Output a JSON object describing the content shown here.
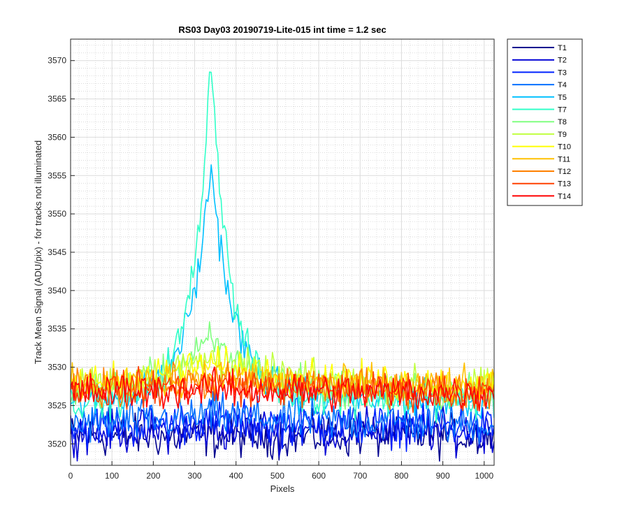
{
  "chart_data": {
    "type": "line",
    "title": "RS03 Day03 20190719-Lite-015 int time = 1.2 sec",
    "xlabel": "Pixels",
    "ylabel": "Track Mean Signal (ADU/pix) - for tracks not illuminated",
    "xlim": [
      0,
      1024
    ],
    "ylim": [
      3517.2,
      3572.8
    ],
    "xticks": [
      0,
      100,
      200,
      300,
      400,
      500,
      600,
      700,
      800,
      900,
      1000
    ],
    "yticks": [
      3520,
      3525,
      3530,
      3535,
      3540,
      3545,
      3550,
      3555,
      3560,
      3565,
      3570
    ],
    "grid": true,
    "minor_grid": true,
    "legend_position": "outside-right-top",
    "x_step": 4,
    "series": [
      {
        "name": "T1",
        "color": "#00008f",
        "base": 3521.0,
        "slope": 0.0,
        "peak": 0,
        "width": 0,
        "noise": 3.0
      },
      {
        "name": "T2",
        "color": "#0000d6",
        "base": 3521.6,
        "slope": 0.2,
        "peak": 0,
        "width": 0,
        "noise": 3.0
      },
      {
        "name": "T3",
        "color": "#0022ff",
        "base": 3522.2,
        "slope": 0.3,
        "peak": 0.6,
        "width": 110,
        "noise": 3.0
      },
      {
        "name": "T4",
        "color": "#0070ff",
        "base": 3522.6,
        "slope": 0.4,
        "peak": 1.0,
        "width": 110,
        "noise": 3.0
      },
      {
        "name": "T5",
        "color": "#00c0ff",
        "base": 3525.5,
        "slope": 0.6,
        "peak": 30.5,
        "width": 52,
        "noise": 2.6
      },
      {
        "name": "T7",
        "color": "#30ffc8",
        "base": 3525.5,
        "slope": 0.6,
        "peak": 45.0,
        "width": 44,
        "noise": 2.6
      },
      {
        "name": "T8",
        "color": "#80ff80",
        "base": 3526.5,
        "slope": 0.8,
        "peak": 6.5,
        "width": 100,
        "noise": 2.6
      },
      {
        "name": "T9",
        "color": "#c0ff40",
        "base": 3527.3,
        "slope": 0.6,
        "peak": 3.5,
        "width": 140,
        "noise": 2.6
      },
      {
        "name": "T10",
        "color": "#ffff00",
        "base": 3527.6,
        "slope": 0.4,
        "peak": 2.5,
        "width": 160,
        "noise": 2.6
      },
      {
        "name": "T11",
        "color": "#ffc000",
        "base": 3527.4,
        "slope": 0.3,
        "peak": 1.5,
        "width": 180,
        "noise": 2.6
      },
      {
        "name": "T12",
        "color": "#ff8000",
        "base": 3527.0,
        "slope": 0.2,
        "peak": 1.0,
        "width": 200,
        "noise": 2.6
      },
      {
        "name": "T13",
        "color": "#ff4000",
        "base": 3526.8,
        "slope": 0.1,
        "peak": 0.8,
        "width": 220,
        "noise": 2.6
      },
      {
        "name": "T14",
        "color": "#ff0000",
        "base": 3526.6,
        "slope": 0.0,
        "peak": 0.6,
        "width": 240,
        "noise": 2.6
      }
    ],
    "peak_center": 340
  }
}
